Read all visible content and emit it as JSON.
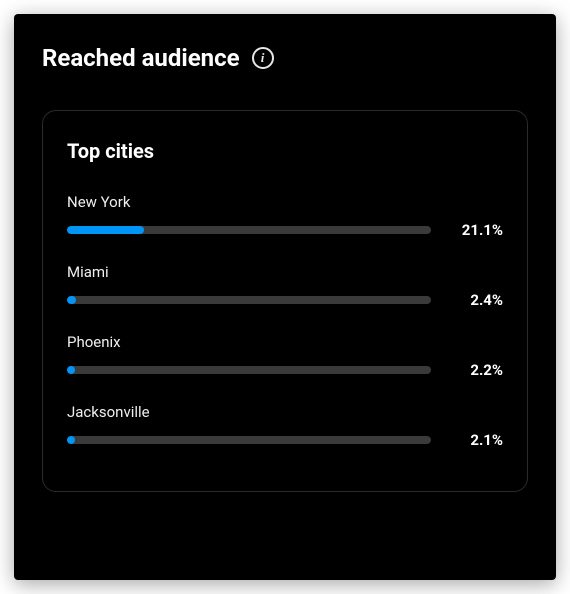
{
  "header": {
    "title": "Reached audience",
    "info_glyph": "i"
  },
  "card": {
    "title": "Top cities",
    "bar_track_color": "#3a3a3a",
    "bar_fill_color": "#0095f6",
    "cities": [
      {
        "name": "New York",
        "percent_label": "21.1%",
        "percent_value": 21.1
      },
      {
        "name": "Miami",
        "percent_label": "2.4%",
        "percent_value": 2.4
      },
      {
        "name": "Phoenix",
        "percent_label": "2.2%",
        "percent_value": 2.2
      },
      {
        "name": "Jacksonville",
        "percent_label": "2.1%",
        "percent_value": 2.1
      }
    ]
  },
  "colors": {
    "panel_bg": "#000000",
    "card_border": "#2a2a2a",
    "text_primary": "#ffffff",
    "text_secondary": "#efefef",
    "info_icon_stroke": "#e6e6e6"
  }
}
